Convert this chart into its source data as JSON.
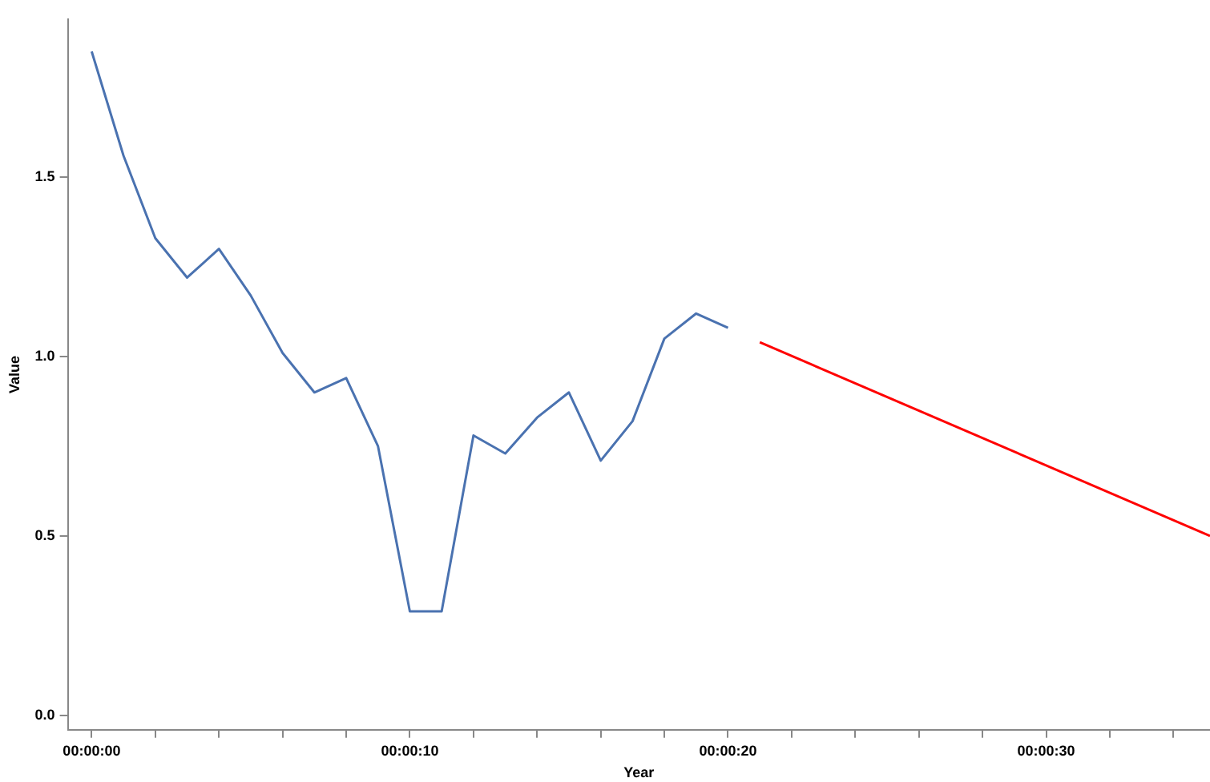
{
  "chart_data": {
    "type": "line",
    "xlabel": "Year",
    "ylabel": "Value",
    "xlim": [
      -0.75,
      35.15
    ],
    "ylim": [
      -0.04,
      1.94
    ],
    "xticks": [
      {
        "value": 0,
        "label": "00:00:00"
      },
      {
        "value": 2,
        "label": null
      },
      {
        "value": 4,
        "label": null
      },
      {
        "value": 6,
        "label": null
      },
      {
        "value": 8,
        "label": null
      },
      {
        "value": 10,
        "label": "00:00:10"
      },
      {
        "value": 12,
        "label": null
      },
      {
        "value": 14,
        "label": null
      },
      {
        "value": 16,
        "label": null
      },
      {
        "value": 18,
        "label": null
      },
      {
        "value": 20,
        "label": "00:00:20"
      },
      {
        "value": 22,
        "label": null
      },
      {
        "value": 24,
        "label": null
      },
      {
        "value": 26,
        "label": null
      },
      {
        "value": 28,
        "label": null
      },
      {
        "value": 30,
        "label": "00:00:30"
      },
      {
        "value": 32,
        "label": null
      },
      {
        "value": 34,
        "label": null
      }
    ],
    "yticks": [
      {
        "value": 0,
        "label": "0.0"
      },
      {
        "value": 0.5,
        "label": "0.5"
      },
      {
        "value": 1,
        "label": "1.0"
      },
      {
        "value": 1.5,
        "label": "1.5"
      }
    ],
    "grid": false,
    "legend": false,
    "marker": "none",
    "line_style": "solid",
    "series": [
      {
        "color": "#4a72b0",
        "x": [
          0,
          1,
          2,
          3,
          4,
          5,
          6,
          7,
          8,
          9,
          10,
          11,
          12,
          13,
          14,
          15,
          16,
          17,
          18,
          19,
          20
        ],
        "values": [
          1.85,
          1.56,
          1.33,
          1.22,
          1.3,
          1.17,
          1.01,
          0.9,
          0.94,
          0.75,
          0.29,
          0.29,
          0.78,
          0.73,
          0.83,
          0.9,
          0.71,
          0.82,
          1.05,
          1.12,
          1.08
        ]
      },
      {
        "color": "#ff0000",
        "x": [
          21,
          35.15
        ],
        "values": [
          1.04,
          0.5
        ]
      }
    ]
  }
}
